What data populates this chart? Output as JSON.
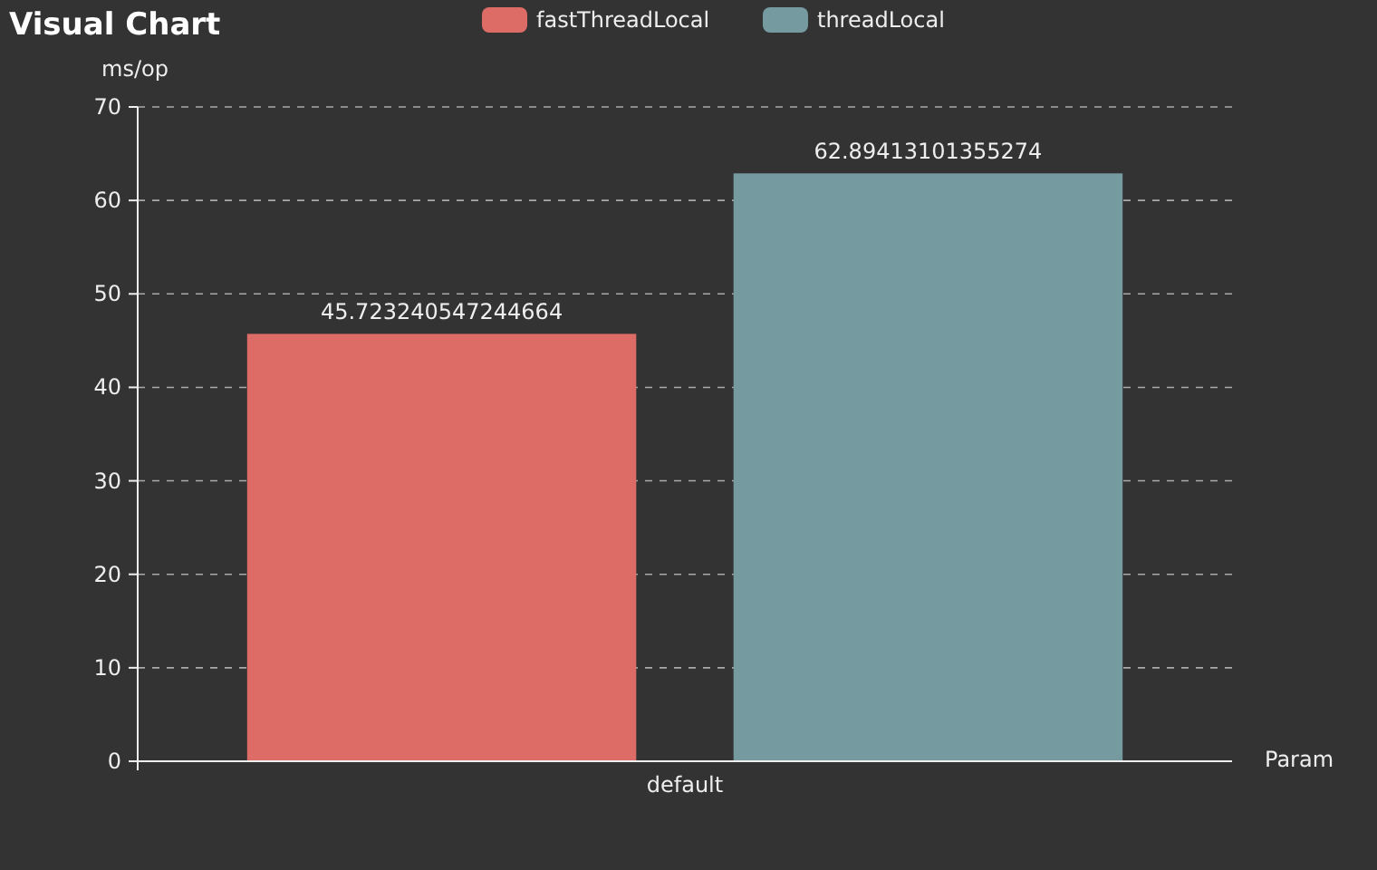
{
  "chart_data": {
    "type": "bar",
    "title": "Visual Chart",
    "xlabel": "Param",
    "ylabel": "ms/op",
    "categories": [
      "default"
    ],
    "series": [
      {
        "name": "fastThreadLocal",
        "color": "#dd6b66",
        "values": [
          45.723240547244664
        ]
      },
      {
        "name": "threadLocal",
        "color": "#759aa0",
        "values": [
          62.89413101355274
        ]
      }
    ],
    "ylim": [
      0,
      70
    ],
    "yticks": [
      0,
      10,
      20,
      30,
      40,
      50,
      60,
      70
    ],
    "grid": "y",
    "legend": "top",
    "data_labels": true
  }
}
